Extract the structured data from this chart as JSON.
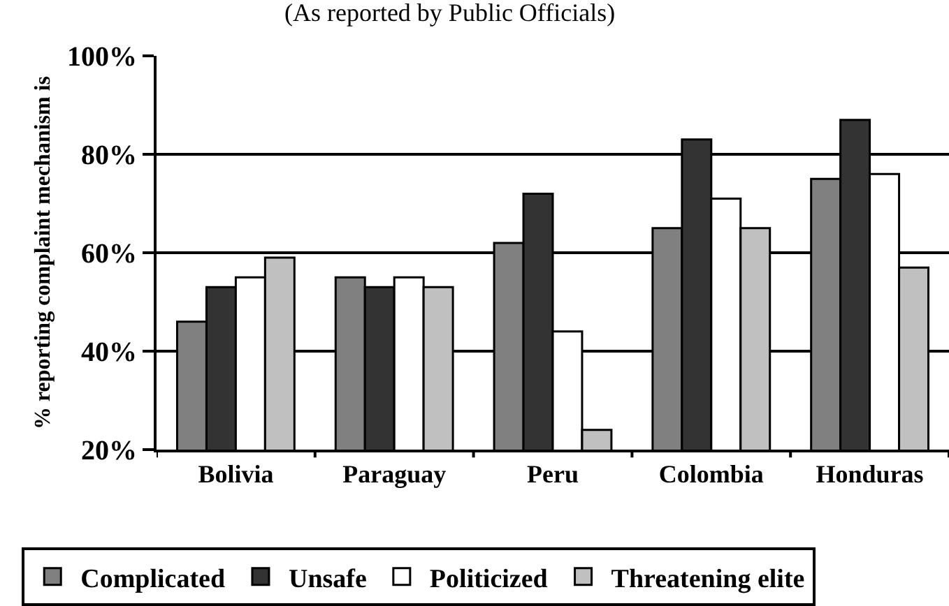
{
  "chart_data": {
    "type": "bar",
    "title": "(As reported by Public Officials)",
    "ylabel": "% reporting complaint mechanism is",
    "categories": [
      "Bolivia",
      "Paraguay",
      "Peru",
      "Colombia",
      "Honduras"
    ],
    "series": [
      {
        "name": "Complicated",
        "color": "#808080",
        "values": [
          46,
          55,
          62,
          65,
          75
        ]
      },
      {
        "name": "Unsafe",
        "color": "#333333",
        "values": [
          53,
          53,
          72,
          83,
          87
        ]
      },
      {
        "name": "Politicized",
        "color": "#ffffff",
        "values": [
          55,
          55,
          44,
          71,
          76
        ]
      },
      {
        "name": "Threatening elite",
        "color": "#c0c0c0",
        "values": [
          59,
          53,
          24,
          65,
          57
        ]
      }
    ],
    "ylim": [
      20,
      100
    ],
    "yticks": [
      {
        "value": 20,
        "label": "20%"
      },
      {
        "value": 40,
        "label": "40%"
      },
      {
        "value": 60,
        "label": "60%"
      },
      {
        "value": 80,
        "label": "80%"
      },
      {
        "value": 100,
        "label": "100%"
      }
    ],
    "grid": "y",
    "legend": "bottom"
  }
}
